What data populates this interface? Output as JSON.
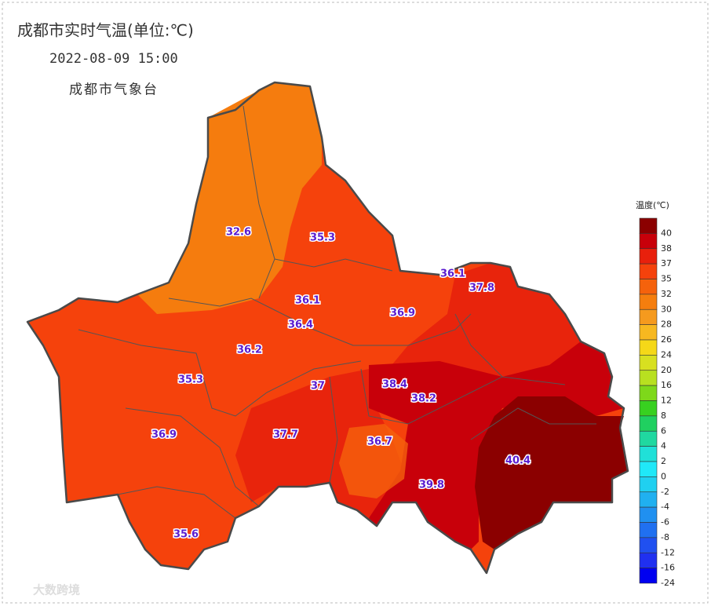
{
  "header": {
    "title": "成都市实时气温(单位:℃)",
    "time": "2022-08-09 15:00",
    "source": "成都市气象台"
  },
  "stations": [
    {
      "label": "32.6",
      "value": 32.6
    },
    {
      "label": "35.3",
      "value": 35.3
    },
    {
      "label": "36.1",
      "value": 36.1
    },
    {
      "label": "37.8",
      "value": 37.8
    },
    {
      "label": "36.1",
      "value": 36.1
    },
    {
      "label": "36.4",
      "value": 36.4
    },
    {
      "label": "36.9",
      "value": 36.9
    },
    {
      "label": "36.2",
      "value": 36.2
    },
    {
      "label": "35.3",
      "value": 35.3
    },
    {
      "label": "37",
      "value": 37
    },
    {
      "label": "38.4",
      "value": 38.4
    },
    {
      "label": "38.2",
      "value": 38.2
    },
    {
      "label": "36.9",
      "value": 36.9
    },
    {
      "label": "37.7",
      "value": 37.7
    },
    {
      "label": "36.7",
      "value": 36.7
    },
    {
      "label": "39.8",
      "value": 39.8
    },
    {
      "label": "40.4",
      "value": 40.4
    },
    {
      "label": "35.6",
      "value": 35.6
    }
  ],
  "legend": {
    "title": "温度(℃)",
    "levels": [
      {
        "value": 40,
        "color": "#8b0000"
      },
      {
        "value": 38,
        "color": "#c8000a"
      },
      {
        "value": 37,
        "color": "#e8200c"
      },
      {
        "value": 35,
        "color": "#f5420c"
      },
      {
        "value": 32,
        "color": "#f5620c"
      },
      {
        "value": 30,
        "color": "#f57e0e"
      },
      {
        "value": 28,
        "color": "#f59a1e"
      },
      {
        "value": 26,
        "color": "#f7b820"
      },
      {
        "value": 24,
        "color": "#f5d818"
      },
      {
        "value": 20,
        "color": "#d8e020"
      },
      {
        "value": 16,
        "color": "#b8e020"
      },
      {
        "value": 12,
        "color": "#7ed81a"
      },
      {
        "value": 8,
        "color": "#38d020"
      },
      {
        "value": 6,
        "color": "#20d060"
      },
      {
        "value": 4,
        "color": "#20d8a0"
      },
      {
        "value": 2,
        "color": "#20e0d8"
      },
      {
        "value": 0,
        "color": "#20e8f8"
      },
      {
        "value": -2,
        "color": "#20d0f0"
      },
      {
        "value": -4,
        "color": "#20b0f0"
      },
      {
        "value": -6,
        "color": "#2090f0"
      },
      {
        "value": -8,
        "color": "#2070f0"
      },
      {
        "value": -12,
        "color": "#2050f0"
      },
      {
        "value": -16,
        "color": "#2030f0"
      },
      {
        "value": -24,
        "color": "#0000f0"
      }
    ]
  },
  "watermark": "大数跨境"
}
